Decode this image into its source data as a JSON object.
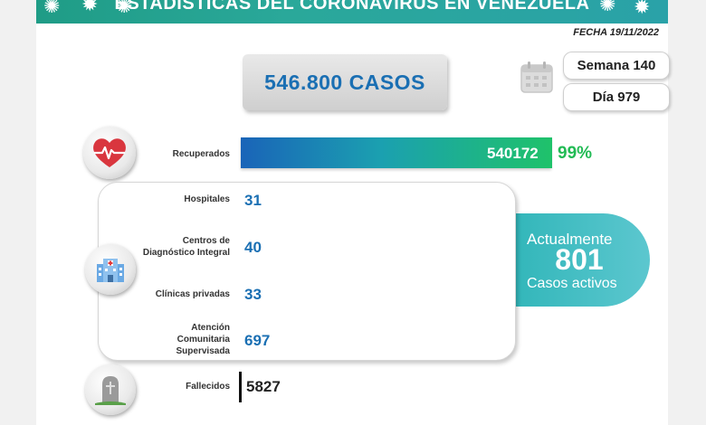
{
  "banner": {
    "title": "ESTADÍSTICAS DEL CORONAVIRUS EN VENEZUELA"
  },
  "fecha": "FECHA 19/11/2022",
  "casos": "546.800 CASOS",
  "semana": "Semana 140",
  "dia": "Día 979",
  "recuperados": {
    "label": "Recuperados",
    "value": "540172",
    "pct": "99%",
    "fraction": 0.99
  },
  "rows": [
    {
      "label": "Hospitales",
      "value": "31"
    },
    {
      "label": "Centros de Diagnóstico Integral",
      "value": "40"
    },
    {
      "label": "Clínicas privadas",
      "value": "33"
    },
    {
      "label": "Atención Comunitaria Supervisada",
      "value": "697"
    }
  ],
  "activos": {
    "line1": "Actualmente",
    "number": "801",
    "line2": "Casos activos"
  },
  "fallecidos": {
    "label": "Fallecidos",
    "value": "5827"
  },
  "icons": {
    "recuperados": "heart-pulse-icon",
    "hospital": "hospital-icon",
    "fallecidos": "tombstone-icon",
    "calendar": "calendar-icon",
    "virus": "virus-icon"
  },
  "colors": {
    "accent": "#1a6fb3",
    "green": "#22bb55",
    "teal": "#2fb5b8"
  }
}
